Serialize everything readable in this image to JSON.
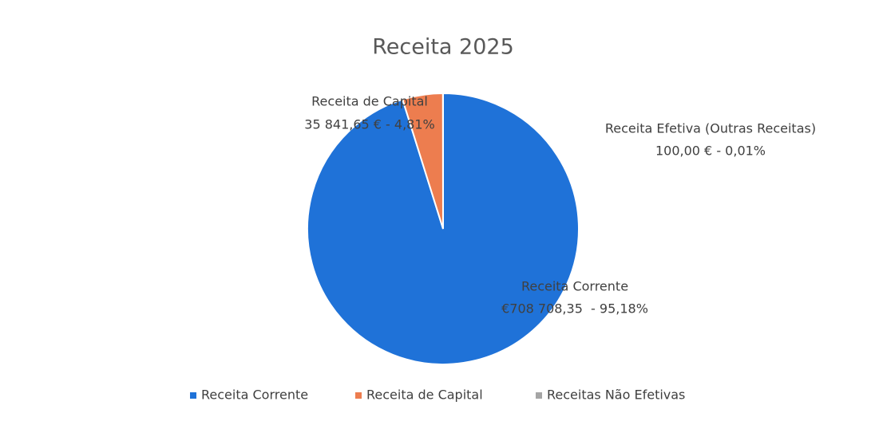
{
  "chart_data": {
    "type": "pie",
    "title": "Receita 2025",
    "categories": [
      "Receita Corrente",
      "Receita de Capital",
      "Receitas Não Efetivas"
    ],
    "data_label_names": [
      "Receita Corrente",
      "Receita de Capital",
      "Receita Efetiva (Outras Receitas)"
    ],
    "values": [
      708708.35,
      35841.65,
      100
    ],
    "value_labels": [
      "€708 708,35  - 95,18%",
      "35 841,65 € - 4,81%",
      "100,00 € - 0,01%"
    ],
    "colors": [
      "#1f72d8",
      "#ed7d4f",
      "#a5a5a5"
    ],
    "legend": "bottom"
  }
}
